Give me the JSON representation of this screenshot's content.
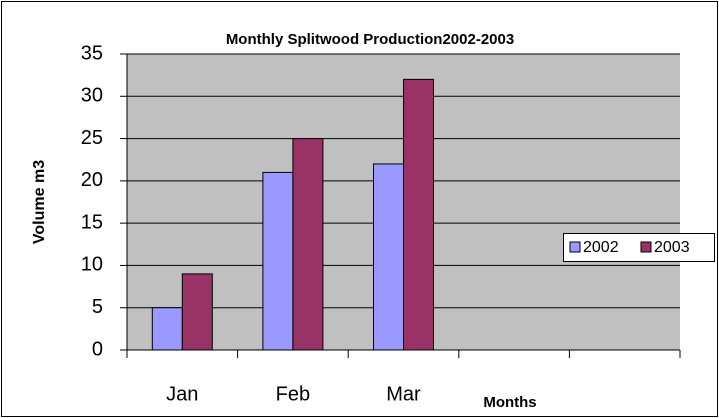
{
  "chart_data": {
    "type": "bar",
    "title": "Monthly Splitwood Production2002-2003",
    "y_label": "Volume m3",
    "x_label": "Months",
    "categories": [
      "Jan",
      "Feb",
      "Mar",
      null,
      null
    ],
    "series": [
      {
        "name": "2002",
        "color": "#9999ff",
        "values": [
          5,
          21,
          22,
          null,
          null
        ]
      },
      {
        "name": "2003",
        "color": "#993366",
        "values": [
          9,
          25,
          32,
          null,
          null
        ]
      }
    ],
    "ylim": [
      0,
      35
    ],
    "yticks": [
      0,
      5,
      10,
      15,
      20,
      25,
      30,
      35
    ],
    "grid": true,
    "legend": "right"
  }
}
